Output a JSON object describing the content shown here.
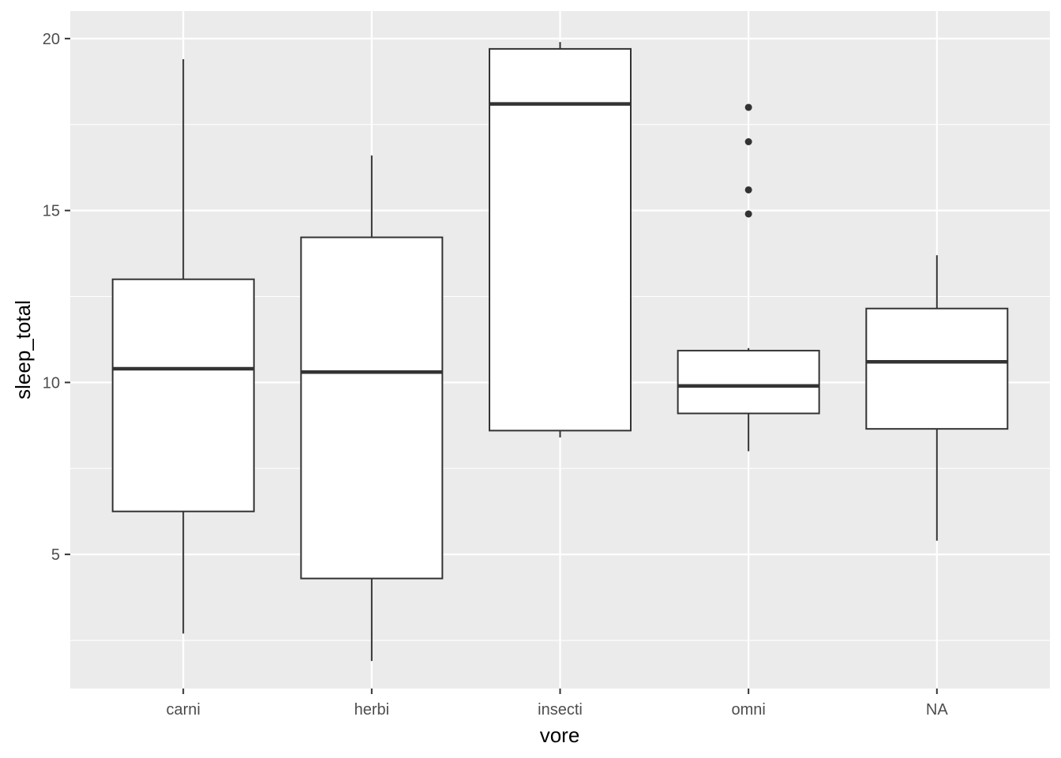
{
  "chart_data": {
    "type": "boxplot",
    "title": "",
    "xlabel": "vore",
    "ylabel": "sleep_total",
    "categories": [
      "carni",
      "herbi",
      "insecti",
      "omni",
      "NA"
    ],
    "ylim": [
      1.1,
      20.8
    ],
    "yticks": [
      5,
      10,
      15,
      20
    ],
    "grid": true,
    "legend": "none",
    "boxes": [
      {
        "category": "carni",
        "min": 2.7,
        "q1": 6.25,
        "median": 10.4,
        "q3": 13.0,
        "max": 19.4,
        "outliers": []
      },
      {
        "category": "herbi",
        "min": 1.9,
        "q1": 4.3,
        "median": 10.3,
        "q3": 14.22,
        "max": 16.6,
        "outliers": []
      },
      {
        "category": "insecti",
        "min": 8.4,
        "q1": 8.6,
        "median": 18.1,
        "q3": 19.7,
        "max": 19.9,
        "outliers": []
      },
      {
        "category": "omni",
        "min": 8.0,
        "q1": 9.1,
        "median": 9.9,
        "q3": 10.925,
        "max": 11.0,
        "outliers": [
          14.9,
          15.6,
          17.0,
          18.0
        ]
      },
      {
        "category": "NA",
        "min": 5.4,
        "q1": 8.65,
        "median": 10.6,
        "q3": 12.15,
        "max": 13.7,
        "outliers": []
      }
    ],
    "colors": {
      "panel": "#ebebeb",
      "grid": "#ffffff",
      "box_fill": "#ffffff",
      "box_line": "#333333",
      "tick_text": "#4d4d4d"
    }
  }
}
